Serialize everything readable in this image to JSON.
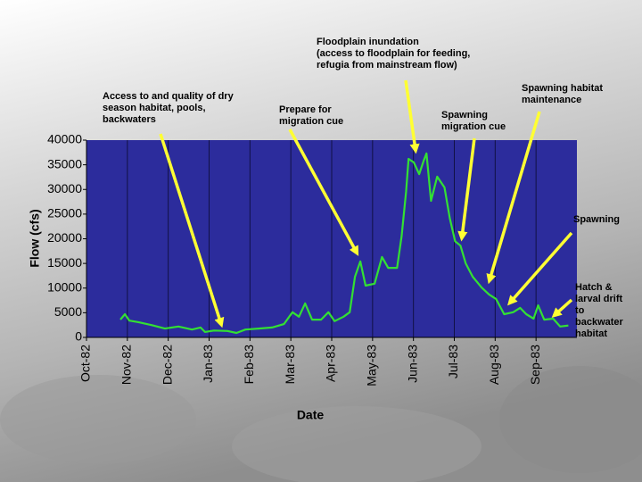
{
  "chart_data": {
    "type": "line",
    "xlabel": "Date",
    "ylabel": "Flow (cfs)",
    "xlim": [
      0,
      12
    ],
    "xticks": [
      {
        "value": 0,
        "label": "Oct-82"
      },
      {
        "value": 1,
        "label": "Nov-82"
      },
      {
        "value": 2,
        "label": "Dec-82"
      },
      {
        "value": 3,
        "label": "Jan-83"
      },
      {
        "value": 4,
        "label": "Feb-83"
      },
      {
        "value": 5,
        "label": "Mar-83"
      },
      {
        "value": 6,
        "label": "Apr-83"
      },
      {
        "value": 7,
        "label": "May-83"
      },
      {
        "value": 8,
        "label": "Jun-83"
      },
      {
        "value": 9,
        "label": "Jul-83"
      },
      {
        "value": 10,
        "label": "Aug-83"
      },
      {
        "value": 11,
        "label": "Sep-83"
      }
    ],
    "ylim": [
      0,
      40000
    ],
    "yticks": [
      0,
      5000,
      10000,
      15000,
      20000,
      25000,
      30000,
      35000,
      40000
    ],
    "grid": true,
    "background": "#2c2c9c",
    "series": [
      {
        "color": "#33e033",
        "x": [
          0.83,
          0.94,
          1.05,
          1.27,
          1.59,
          1.92,
          2.25,
          2.58,
          2.79,
          2.9,
          3.12,
          3.45,
          3.67,
          3.89,
          4.21,
          4.54,
          4.83,
          5.04,
          5.2,
          5.35,
          5.52,
          5.74,
          5.92,
          6.07,
          6.29,
          6.44,
          6.57,
          6.7,
          6.83,
          7.05,
          7.23,
          7.38,
          7.6,
          7.71,
          7.82,
          7.88,
          8.01,
          8.14,
          8.25,
          8.32,
          8.43,
          8.58,
          8.76,
          8.89,
          9.02,
          9.15,
          9.28,
          9.45,
          9.67,
          9.85,
          10.02,
          10.22,
          10.44,
          10.61,
          10.76,
          10.94,
          11.05,
          11.2,
          11.42,
          11.59,
          11.79
        ],
        "values": [
          3600,
          4700,
          3400,
          3100,
          2500,
          1800,
          2200,
          1600,
          2000,
          1100,
          1400,
          1300,
          900,
          1600,
          1800,
          2000,
          2700,
          5100,
          4200,
          6900,
          3600,
          3600,
          5100,
          3300,
          4200,
          5100,
          12300,
          15400,
          10500,
          10900,
          16300,
          14100,
          14100,
          20500,
          29500,
          36200,
          35500,
          33100,
          35800,
          37300,
          27700,
          32600,
          30400,
          24100,
          19500,
          18600,
          15000,
          12300,
          10100,
          8700,
          7800,
          4700,
          5100,
          6000,
          4700,
          3800,
          6500,
          3600,
          3800,
          2200,
          2400
        ]
      }
    ],
    "annotations": [
      "Access to  and quality of dry\nseason habitat, pools,\nbackwaters",
      "Prepare for\nmigration cue",
      "Floodplain inundation\n(access to floodplain for feeding,\nrefugia from mainstream flow)",
      "Spawning\nmigration cue",
      "Spawning habitat\nmaintenance",
      "Spawning",
      "Hatch &\nlarval drift\nto\nbackwater\nhabitat"
    ]
  }
}
